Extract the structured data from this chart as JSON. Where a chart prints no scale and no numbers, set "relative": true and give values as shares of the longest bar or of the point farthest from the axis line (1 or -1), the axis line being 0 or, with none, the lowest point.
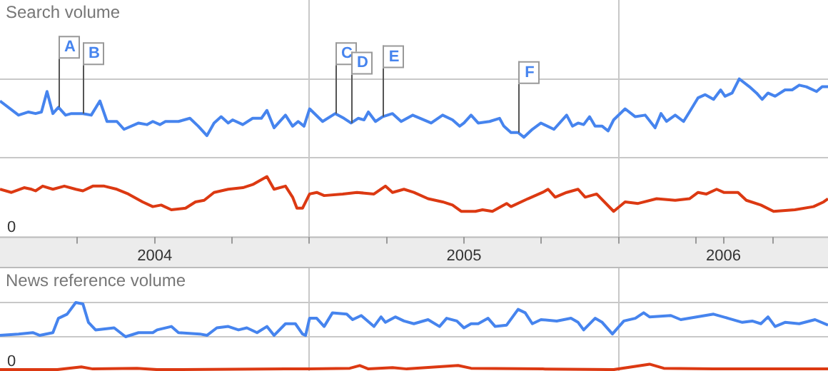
{
  "chart_data": [
    {
      "type": "line",
      "title": "Search volume",
      "relative": true,
      "grid": true,
      "marker": "none",
      "tick_labels": "x",
      "xlim": [
        2004,
        2006.677
      ],
      "xticks": [
        {
          "value": 2004.25,
          "label": null
        },
        {
          "value": 2004.5,
          "label": "2004"
        },
        {
          "value": 2004.75,
          "label": null
        },
        {
          "value": 2005,
          "label": null
        },
        {
          "value": 2005.25,
          "label": null
        },
        {
          "value": 2005.5,
          "label": "2005"
        },
        {
          "value": 2005.75,
          "label": null
        },
        {
          "value": 2006,
          "label": null
        },
        {
          "value": 2006.25,
          "label": null
        },
        {
          "value": 2006.339,
          "label": "2006"
        },
        {
          "value": 2006.5,
          "label": null
        }
      ],
      "annotations": [
        "0",
        {
          "text": "A",
          "x": 2004.189,
          "y": 0.82
        },
        {
          "text": "B",
          "x": 2004.268,
          "y": 0.78
        },
        {
          "text": "C",
          "x": 2005.084,
          "y": 0.78
        },
        {
          "text": "D",
          "x": 2005.135,
          "y": 0.72
        },
        {
          "text": "E",
          "x": 2005.237,
          "y": 0.76
        },
        {
          "text": "F",
          "x": 2005.675,
          "y": 0.66
        }
      ],
      "series": [
        {
          "color": "#4684ee",
          "x": [
            2004.0,
            2004.06,
            2004.092,
            2004.115,
            2004.134,
            2004.152,
            2004.171,
            2004.189,
            2004.212,
            2004.231,
            2004.268,
            2004.295,
            2004.323,
            2004.346,
            2004.378,
            2004.401,
            2004.448,
            2004.475,
            2004.494,
            2004.517,
            2004.535,
            2004.577,
            2004.614,
            2004.641,
            2004.669,
            2004.692,
            2004.715,
            2004.738,
            2004.752,
            2004.785,
            2004.817,
            2004.845,
            2004.863,
            2004.886,
            2004.923,
            2004.946,
            2004.964,
            2004.983,
            2005.001,
            2005.043,
            2005.084,
            2005.112,
            2005.135,
            2005.158,
            2005.177,
            2005.191,
            2005.214,
            2005.237,
            2005.269,
            2005.297,
            2005.334,
            2005.394,
            2005.431,
            2005.463,
            2005.486,
            2005.5,
            2005.523,
            2005.546,
            2005.583,
            2005.615,
            2005.629,
            2005.652,
            2005.675,
            2005.694,
            2005.721,
            2005.749,
            2005.791,
            2005.832,
            2005.851,
            2005.869,
            2005.887,
            2005.906,
            2005.924,
            2005.947,
            2005.966,
            2005.984,
            2006.021,
            2006.054,
            2006.086,
            2006.118,
            2006.137,
            2006.155,
            2006.183,
            2006.21,
            2006.229,
            2006.257,
            2006.28,
            2006.307,
            2006.33,
            2006.344,
            2006.367,
            2006.39,
            2006.423,
            2006.446,
            2006.464,
            2006.483,
            2006.506,
            2006.538,
            2006.561,
            2006.584,
            2006.607,
            2006.64,
            2006.658,
            2006.677
          ],
          "values": [
            0.86,
            0.77,
            0.79,
            0.78,
            0.79,
            0.92,
            0.78,
            0.82,
            0.77,
            0.78,
            0.78,
            0.77,
            0.86,
            0.73,
            0.73,
            0.68,
            0.72,
            0.71,
            0.73,
            0.71,
            0.73,
            0.73,
            0.75,
            0.7,
            0.64,
            0.72,
            0.76,
            0.72,
            0.74,
            0.71,
            0.75,
            0.75,
            0.8,
            0.69,
            0.77,
            0.7,
            0.73,
            0.7,
            0.81,
            0.73,
            0.78,
            0.75,
            0.72,
            0.75,
            0.74,
            0.79,
            0.73,
            0.76,
            0.78,
            0.73,
            0.77,
            0.72,
            0.77,
            0.74,
            0.7,
            0.72,
            0.77,
            0.72,
            0.73,
            0.75,
            0.7,
            0.66,
            0.66,
            0.63,
            0.68,
            0.72,
            0.68,
            0.77,
            0.7,
            0.72,
            0.71,
            0.76,
            0.7,
            0.7,
            0.67,
            0.74,
            0.81,
            0.76,
            0.77,
            0.69,
            0.78,
            0.73,
            0.77,
            0.73,
            0.79,
            0.88,
            0.9,
            0.87,
            0.93,
            0.89,
            0.91,
            1.0,
            0.95,
            0.91,
            0.87,
            0.91,
            0.89,
            0.93,
            0.93,
            0.96,
            0.95,
            0.92,
            0.95,
            0.95
          ]
        },
        {
          "color": "#dc3912",
          "x": [
            2004.0,
            2004.037,
            2004.078,
            2004.102,
            2004.115,
            2004.138,
            2004.171,
            2004.208,
            2004.245,
            2004.268,
            2004.3,
            2004.337,
            2004.378,
            2004.415,
            2004.461,
            2004.494,
            2004.521,
            2004.554,
            2004.6,
            2004.632,
            2004.66,
            2004.692,
            2004.738,
            2004.785,
            2004.817,
            2004.863,
            2004.886,
            2004.923,
            2004.946,
            2004.96,
            2004.978,
            2005.001,
            2005.024,
            2005.048,
            2005.108,
            2005.154,
            2005.209,
            2005.246,
            2005.269,
            2005.306,
            2005.338,
            2005.384,
            2005.431,
            2005.463,
            2005.491,
            2005.537,
            2005.56,
            2005.592,
            2005.638,
            2005.652,
            2005.707,
            2005.754,
            2005.772,
            2005.795,
            2005.832,
            2005.869,
            2005.892,
            2005.929,
            2005.984,
            2006.021,
            2006.063,
            2006.123,
            2006.183,
            2006.229,
            2006.257,
            2006.284,
            2006.317,
            2006.34,
            2006.386,
            2006.413,
            2006.46,
            2006.501,
            2006.57,
            2006.63,
            2006.663,
            2006.677
          ],
          "values": [
            0.3,
            0.28,
            0.31,
            0.3,
            0.29,
            0.32,
            0.3,
            0.32,
            0.3,
            0.29,
            0.32,
            0.32,
            0.3,
            0.27,
            0.22,
            0.19,
            0.2,
            0.17,
            0.18,
            0.22,
            0.23,
            0.28,
            0.3,
            0.31,
            0.33,
            0.38,
            0.3,
            0.32,
            0.25,
            0.18,
            0.18,
            0.27,
            0.28,
            0.26,
            0.27,
            0.28,
            0.27,
            0.32,
            0.28,
            0.3,
            0.28,
            0.24,
            0.22,
            0.2,
            0.16,
            0.16,
            0.17,
            0.16,
            0.21,
            0.19,
            0.24,
            0.28,
            0.3,
            0.25,
            0.28,
            0.3,
            0.25,
            0.27,
            0.16,
            0.22,
            0.21,
            0.24,
            0.23,
            0.24,
            0.28,
            0.27,
            0.3,
            0.28,
            0.28,
            0.23,
            0.2,
            0.16,
            0.17,
            0.19,
            0.22,
            0.24
          ]
        }
      ]
    },
    {
      "type": "line",
      "title": "News reference volume",
      "relative": true,
      "grid": true,
      "marker": "none",
      "tick_labels": false,
      "xlim": [
        2004,
        2006.677
      ],
      "xticks": [
        {
          "value": 2005,
          "label": null
        },
        {
          "value": 2006,
          "label": null
        }
      ],
      "annotations": [
        "0"
      ],
      "series": [
        {
          "color": "#4684ee",
          "x": [
            2004.0,
            2004.06,
            2004.106,
            2004.129,
            2004.171,
            2004.189,
            2004.217,
            2004.245,
            2004.268,
            2004.286,
            2004.309,
            2004.369,
            2004.406,
            2004.448,
            2004.494,
            2004.508,
            2004.554,
            2004.577,
            2004.646,
            2004.669,
            2004.701,
            2004.738,
            2004.771,
            2004.798,
            2004.831,
            2004.863,
            2004.886,
            2004.923,
            2004.955,
            2004.978,
            2004.988,
            2005.001,
            2005.024,
            2005.048,
            2005.075,
            2005.121,
            2005.14,
            2005.168,
            2005.209,
            2005.232,
            2005.246,
            2005.278,
            2005.306,
            2005.338,
            2005.384,
            2005.421,
            2005.444,
            2005.477,
            2005.5,
            2005.523,
            2005.546,
            2005.578,
            2005.601,
            2005.638,
            2005.675,
            2005.698,
            2005.721,
            2005.749,
            2005.8,
            2005.846,
            2005.869,
            2005.887,
            2005.924,
            2005.947,
            2005.98,
            2006.017,
            2006.054,
            2006.081,
            2006.1,
            2006.169,
            2006.201,
            2006.252,
            2006.307,
            2006.354,
            2006.4,
            2006.432,
            2006.46,
            2006.483,
            2006.506,
            2006.538,
            2006.584,
            2006.635,
            2006.677
          ],
          "values": [
            0.52,
            0.54,
            0.56,
            0.52,
            0.56,
            0.77,
            0.83,
            1.0,
            0.98,
            0.71,
            0.6,
            0.63,
            0.5,
            0.56,
            0.56,
            0.6,
            0.65,
            0.56,
            0.54,
            0.52,
            0.63,
            0.65,
            0.6,
            0.63,
            0.56,
            0.65,
            0.52,
            0.69,
            0.69,
            0.54,
            0.52,
            0.77,
            0.77,
            0.65,
            0.85,
            0.83,
            0.75,
            0.81,
            0.65,
            0.79,
            0.71,
            0.79,
            0.73,
            0.69,
            0.75,
            0.65,
            0.77,
            0.73,
            0.63,
            0.69,
            0.69,
            0.77,
            0.65,
            0.67,
            0.9,
            0.85,
            0.69,
            0.75,
            0.73,
            0.77,
            0.71,
            0.6,
            0.77,
            0.71,
            0.54,
            0.73,
            0.77,
            0.85,
            0.79,
            0.81,
            0.75,
            0.79,
            0.83,
            0.77,
            0.71,
            0.73,
            0.69,
            0.79,
            0.65,
            0.71,
            0.69,
            0.75,
            0.67
          ]
        },
        {
          "color": "#dc3912",
          "x": [
            2004.0,
            2004.185,
            2004.263,
            2004.3,
            2004.443,
            2004.508,
            2004.923,
            2005.001,
            2005.131,
            2005.163,
            2005.191,
            2005.269,
            2005.315,
            2005.481,
            2005.523,
            2005.754,
            2005.984,
            2006.1,
            2006.146,
            2006.307,
            2006.677
          ],
          "values": [
            0.02,
            0.02,
            0.06,
            0.03,
            0.04,
            0.02,
            0.03,
            0.03,
            0.04,
            0.08,
            0.03,
            0.05,
            0.03,
            0.08,
            0.04,
            0.03,
            0.02,
            0.1,
            0.04,
            0.03,
            0.03
          ]
        }
      ]
    }
  ]
}
